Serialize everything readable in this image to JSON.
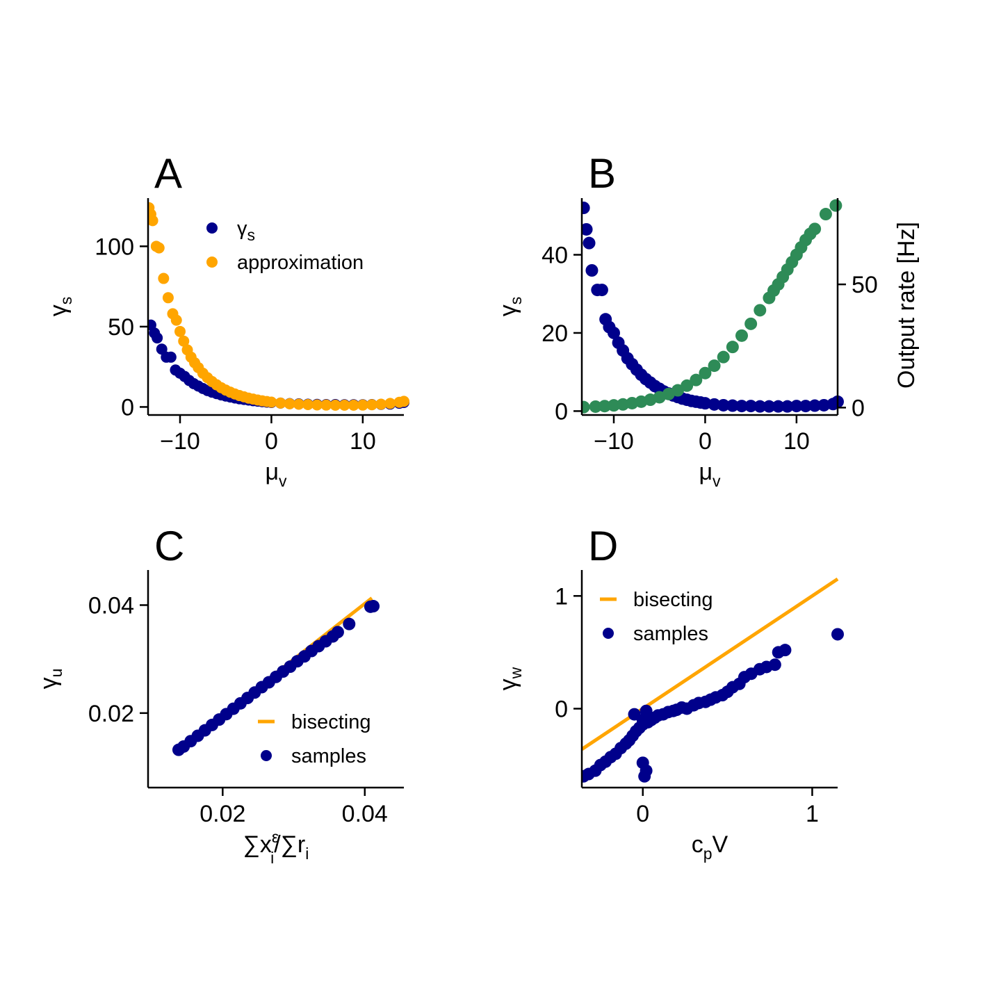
{
  "chart_data": [
    {
      "panel": "A",
      "type": "scatter",
      "xlabel": "μ",
      "xlabel_sub": "v",
      "ylabel": "γ",
      "ylabel_sub": "s",
      "xlim": [
        -13.5,
        14.5
      ],
      "ylim": [
        -5,
        130
      ],
      "xticks": [
        -10,
        0,
        10
      ],
      "xtick_labels": [
        "−10",
        "0",
        "10"
      ],
      "yticks": [
        0,
        50,
        100
      ],
      "ytick_labels": [
        "0",
        "50",
        "100"
      ],
      "legend": "top-right",
      "series": [
        {
          "name": "γ",
          "name_sub": "s",
          "color": "#00008b",
          "x": [
            -13.2,
            -12.8,
            -12.5,
            -12.0,
            -11.5,
            -11.0,
            -10.5,
            -10.0,
            -9.5,
            -9.0,
            -8.5,
            -8.0,
            -7.5,
            -7.0,
            -6.5,
            -6.0,
            -5.5,
            -5.0,
            -4.5,
            -4.0,
            -3.5,
            -3.0,
            -2.5,
            -2.0,
            -1.5,
            -1.0,
            -0.5,
            0.0,
            1.0,
            2.0,
            3.0,
            4.0,
            5.0,
            6.0,
            7.0,
            8.0,
            9.0,
            10.0,
            11.0,
            12.0,
            13.0,
            14.0,
            14.5
          ],
          "y": [
            51,
            46,
            43,
            36,
            31,
            31,
            23,
            21,
            19,
            16.5,
            14.5,
            13,
            11.5,
            10.2,
            9.2,
            8.3,
            7.5,
            6.8,
            6.2,
            5.6,
            5.1,
            4.7,
            4.3,
            3.9,
            3.6,
            3.3,
            3.0,
            2.8,
            2.4,
            2.1,
            1.9,
            1.7,
            1.6,
            1.5,
            1.5,
            1.4,
            1.4,
            1.4,
            1.5,
            1.6,
            1.8,
            2.3,
            2.8
          ]
        },
        {
          "name": "approximation",
          "color": "#ffa500",
          "x": [
            -13.4,
            -13.2,
            -13.0,
            -12.6,
            -12.3,
            -11.8,
            -11.3,
            -10.8,
            -10.4,
            -10.0,
            -9.6,
            -9.2,
            -8.8,
            -8.4,
            -8.0,
            -7.5,
            -7.0,
            -6.5,
            -6.0,
            -5.5,
            -5.0,
            -4.5,
            -4.0,
            -3.5,
            -3.0,
            -2.5,
            -2.0,
            -1.5,
            -1.0,
            -0.5,
            0.0,
            1.0,
            2.0,
            3.0,
            4.0,
            5.0,
            6.0,
            7.0,
            8.0,
            9.0,
            10.0,
            11.0,
            12.0,
            13.0,
            14.0,
            14.5
          ],
          "y": [
            124,
            120,
            116,
            100,
            99,
            80,
            68,
            58,
            54,
            47,
            41,
            35.5,
            31,
            27.5,
            24.5,
            21,
            18.2,
            15.8,
            13.8,
            12.0,
            10.5,
            9.2,
            8.1,
            7.1,
            6.3,
            5.5,
            4.9,
            4.3,
            3.8,
            3.4,
            3.0,
            2.4,
            2.0,
            1.7,
            1.5,
            1.3,
            1.2,
            1.1,
            1.1,
            1.1,
            1.2,
            1.4,
            1.7,
            2.2,
            2.9,
            3.5
          ]
        }
      ]
    },
    {
      "panel": "B",
      "type": "scatter",
      "xlabel": "μ",
      "xlabel_sub": "v",
      "ylabel": "γ",
      "ylabel_sub": "s",
      "ylabel_right": "Output rate [Hz]",
      "xlim": [
        -13.5,
        14.5
      ],
      "ylim": [
        -1,
        54.5
      ],
      "ylim_right": [
        -3,
        85
      ],
      "xticks": [
        -10,
        0,
        10
      ],
      "xtick_labels": [
        "−10",
        "0",
        "10"
      ],
      "yticks": [
        0,
        20,
        40
      ],
      "ytick_labels": [
        "0",
        "20",
        "40"
      ],
      "yticks_right": [
        0,
        50
      ],
      "ytick_right_labels": [
        "0",
        "50"
      ],
      "series": [
        {
          "color": "#00008b",
          "axis": "left",
          "x": [
            -13.3,
            -13.0,
            -12.7,
            -12.4,
            -11.8,
            -11.3,
            -10.9,
            -10.5,
            -10.0,
            -9.5,
            -9.0,
            -8.5,
            -8.0,
            -7.5,
            -7.0,
            -6.5,
            -6.0,
            -5.5,
            -5.0,
            -4.5,
            -4.0,
            -3.5,
            -3.0,
            -2.5,
            -2.0,
            -1.5,
            -1.0,
            -0.5,
            0.0,
            1.0,
            2.0,
            3.0,
            4.0,
            5.0,
            6.0,
            7.0,
            8.0,
            9.0,
            10.0,
            11.0,
            12.0,
            13.0,
            14.0,
            14.5
          ],
          "y": [
            52,
            46.5,
            43,
            36,
            31,
            31,
            23.5,
            21.5,
            20,
            17.5,
            15.5,
            13.5,
            12,
            10.6,
            9.3,
            8.2,
            7.3,
            6.4,
            5.7,
            5.0,
            4.5,
            4.0,
            3.6,
            3.2,
            2.9,
            2.6,
            2.4,
            2.2,
            2.0,
            1.7,
            1.5,
            1.4,
            1.3,
            1.3,
            1.2,
            1.2,
            1.2,
            1.2,
            1.3,
            1.3,
            1.4,
            1.5,
            1.8,
            2.4
          ]
        },
        {
          "color": "#2e8b57",
          "axis": "right",
          "x": [
            -13.3,
            -12.0,
            -11.0,
            -10.0,
            -9.0,
            -8.0,
            -7.0,
            -6.0,
            -5.0,
            -4.0,
            -3.0,
            -2.0,
            -1.0,
            0.0,
            1.0,
            2.0,
            3.0,
            4.0,
            5.0,
            6.0,
            7.0,
            7.5,
            8.0,
            8.5,
            9.0,
            9.5,
            10.0,
            10.5,
            11.0,
            11.5,
            12.0,
            13.2,
            14.3
          ],
          "y": [
            0.2,
            0.4,
            0.6,
            0.9,
            1.3,
            1.8,
            2.4,
            3.2,
            4.2,
            5.5,
            7.0,
            8.9,
            11.2,
            14.0,
            17.0,
            20.5,
            24.6,
            29.2,
            34.0,
            39.5,
            44.5,
            47.5,
            50.0,
            53.0,
            56.0,
            59.0,
            62.0,
            65.0,
            68.0,
            70.5,
            72.5,
            78.5,
            82.0
          ]
        }
      ]
    },
    {
      "panel": "C",
      "type": "scatter",
      "xlabel": "∑x",
      "xlabel_sub": "i",
      "xlabel_sup": "ε",
      "xlabel_mid": "/∑r",
      "xlabel_sub2": "i",
      "ylabel": "γ",
      "ylabel_sub": "u",
      "xlim": [
        0.0095,
        0.0455
      ],
      "ylim": [
        0.0062,
        0.0465
      ],
      "xticks": [
        0.02,
        0.04
      ],
      "xtick_labels": [
        "0.02",
        "0.04"
      ],
      "yticks": [
        0.02,
        0.04
      ],
      "ytick_labels": [
        "0.02",
        "0.04"
      ],
      "legend": "lower-right",
      "series": [
        {
          "name": "bisecting",
          "type": "line",
          "color": "#ffa500",
          "x": [
            0.014,
            0.041
          ],
          "y": [
            0.0135,
            0.0413
          ]
        },
        {
          "name": "samples",
          "color": "#00008b",
          "x": [
            0.0138,
            0.0145,
            0.0155,
            0.0165,
            0.0175,
            0.0185,
            0.0195,
            0.0205,
            0.0215,
            0.0225,
            0.0235,
            0.0245,
            0.0255,
            0.0265,
            0.0275,
            0.0285,
            0.0295,
            0.0305,
            0.0315,
            0.0325,
            0.0335,
            0.0345,
            0.0355,
            0.0362,
            0.0378,
            0.0408,
            0.0412
          ],
          "y": [
            0.0132,
            0.0138,
            0.0148,
            0.0158,
            0.0168,
            0.0178,
            0.0188,
            0.0198,
            0.0208,
            0.0218,
            0.0228,
            0.0238,
            0.0248,
            0.0257,
            0.0267,
            0.0277,
            0.0286,
            0.0296,
            0.0305,
            0.0315,
            0.0324,
            0.0333,
            0.0342,
            0.035,
            0.0365,
            0.0397,
            0.0398
          ]
        }
      ]
    },
    {
      "panel": "D",
      "type": "scatter",
      "xlabel": "c",
      "xlabel_sub": "p",
      "xlabel_tail": "V",
      "ylabel": "γ",
      "ylabel_sub": "w",
      "xlim": [
        -0.36,
        1.15
      ],
      "ylim": [
        -0.7,
        1.23
      ],
      "xticks": [
        0,
        1
      ],
      "xtick_labels": [
        "0",
        "1"
      ],
      "yticks": [
        0,
        1
      ],
      "ytick_labels": [
        "0",
        "1"
      ],
      "legend": "top-left",
      "series": [
        {
          "name": "bisecting",
          "type": "line",
          "color": "#ffa500",
          "x": [
            -0.36,
            1.15
          ],
          "y": [
            -0.36,
            1.15
          ]
        },
        {
          "name": "samples",
          "color": "#00008b",
          "x": [
            -0.35,
            -0.32,
            -0.28,
            -0.25,
            -0.22,
            -0.19,
            -0.16,
            -0.13,
            -0.1,
            -0.08,
            -0.06,
            -0.04,
            -0.02,
            0.0,
            0.01,
            0.02,
            0.0,
            0.03,
            0.05,
            0.07,
            0.09,
            0.12,
            0.15,
            0.18,
            0.2,
            0.23,
            0.26,
            0.3,
            0.33,
            0.37,
            0.4,
            0.43,
            0.47,
            0.5,
            0.53,
            0.57,
            0.6,
            0.64,
            0.69,
            0.73,
            0.78,
            0.8,
            0.84,
            1.15,
            -0.05,
            0.0,
            0.02
          ],
          "y": [
            -0.6,
            -0.58,
            -0.55,
            -0.5,
            -0.47,
            -0.43,
            -0.4,
            -0.35,
            -0.31,
            -0.28,
            -0.24,
            -0.2,
            -0.17,
            -0.14,
            -0.6,
            -0.55,
            -0.48,
            -0.12,
            -0.1,
            -0.08,
            -0.06,
            -0.05,
            -0.03,
            -0.02,
            -0.01,
            0.01,
            0.0,
            0.03,
            0.05,
            0.06,
            0.08,
            0.1,
            0.12,
            0.15,
            0.19,
            0.22,
            0.28,
            0.31,
            0.35,
            0.37,
            0.39,
            0.5,
            0.52,
            0.66,
            -0.05,
            -0.1,
            -0.02
          ]
        }
      ]
    }
  ]
}
